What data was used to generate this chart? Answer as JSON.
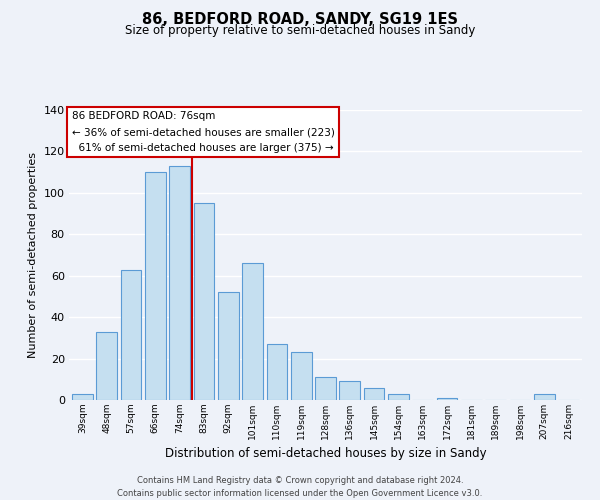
{
  "title": "86, BEDFORD ROAD, SANDY, SG19 1ES",
  "subtitle": "Size of property relative to semi-detached houses in Sandy",
  "xlabel": "Distribution of semi-detached houses by size in Sandy",
  "ylabel": "Number of semi-detached properties",
  "categories": [
    "39sqm",
    "48sqm",
    "57sqm",
    "66sqm",
    "74sqm",
    "83sqm",
    "92sqm",
    "101sqm",
    "110sqm",
    "119sqm",
    "128sqm",
    "136sqm",
    "145sqm",
    "154sqm",
    "163sqm",
    "172sqm",
    "181sqm",
    "189sqm",
    "198sqm",
    "207sqm",
    "216sqm"
  ],
  "values": [
    3,
    33,
    63,
    110,
    113,
    95,
    52,
    66,
    27,
    23,
    11,
    9,
    6,
    3,
    0,
    1,
    0,
    0,
    0,
    3,
    0
  ],
  "bar_color": "#c5dff0",
  "bar_edge_color": "#5b9bd5",
  "vline_color": "#cc0000",
  "vline_x_index": 4.5,
  "annotation_line1": "86 BEDFORD ROAD: 76sqm",
  "annotation_line2": "← 36% of semi-detached houses are smaller (223)",
  "annotation_line3": "  61% of semi-detached houses are larger (375) →",
  "ylim": [
    0,
    140
  ],
  "yticks": [
    0,
    20,
    40,
    60,
    80,
    100,
    120,
    140
  ],
  "footer_text": "Contains HM Land Registry data © Crown copyright and database right 2024.\nContains public sector information licensed under the Open Government Licence v3.0.",
  "bg_color": "#eef2f9",
  "grid_color": "#ffffff",
  "ann_box_edge_color": "#cc0000",
  "ann_box_face_color": "#ffffff"
}
